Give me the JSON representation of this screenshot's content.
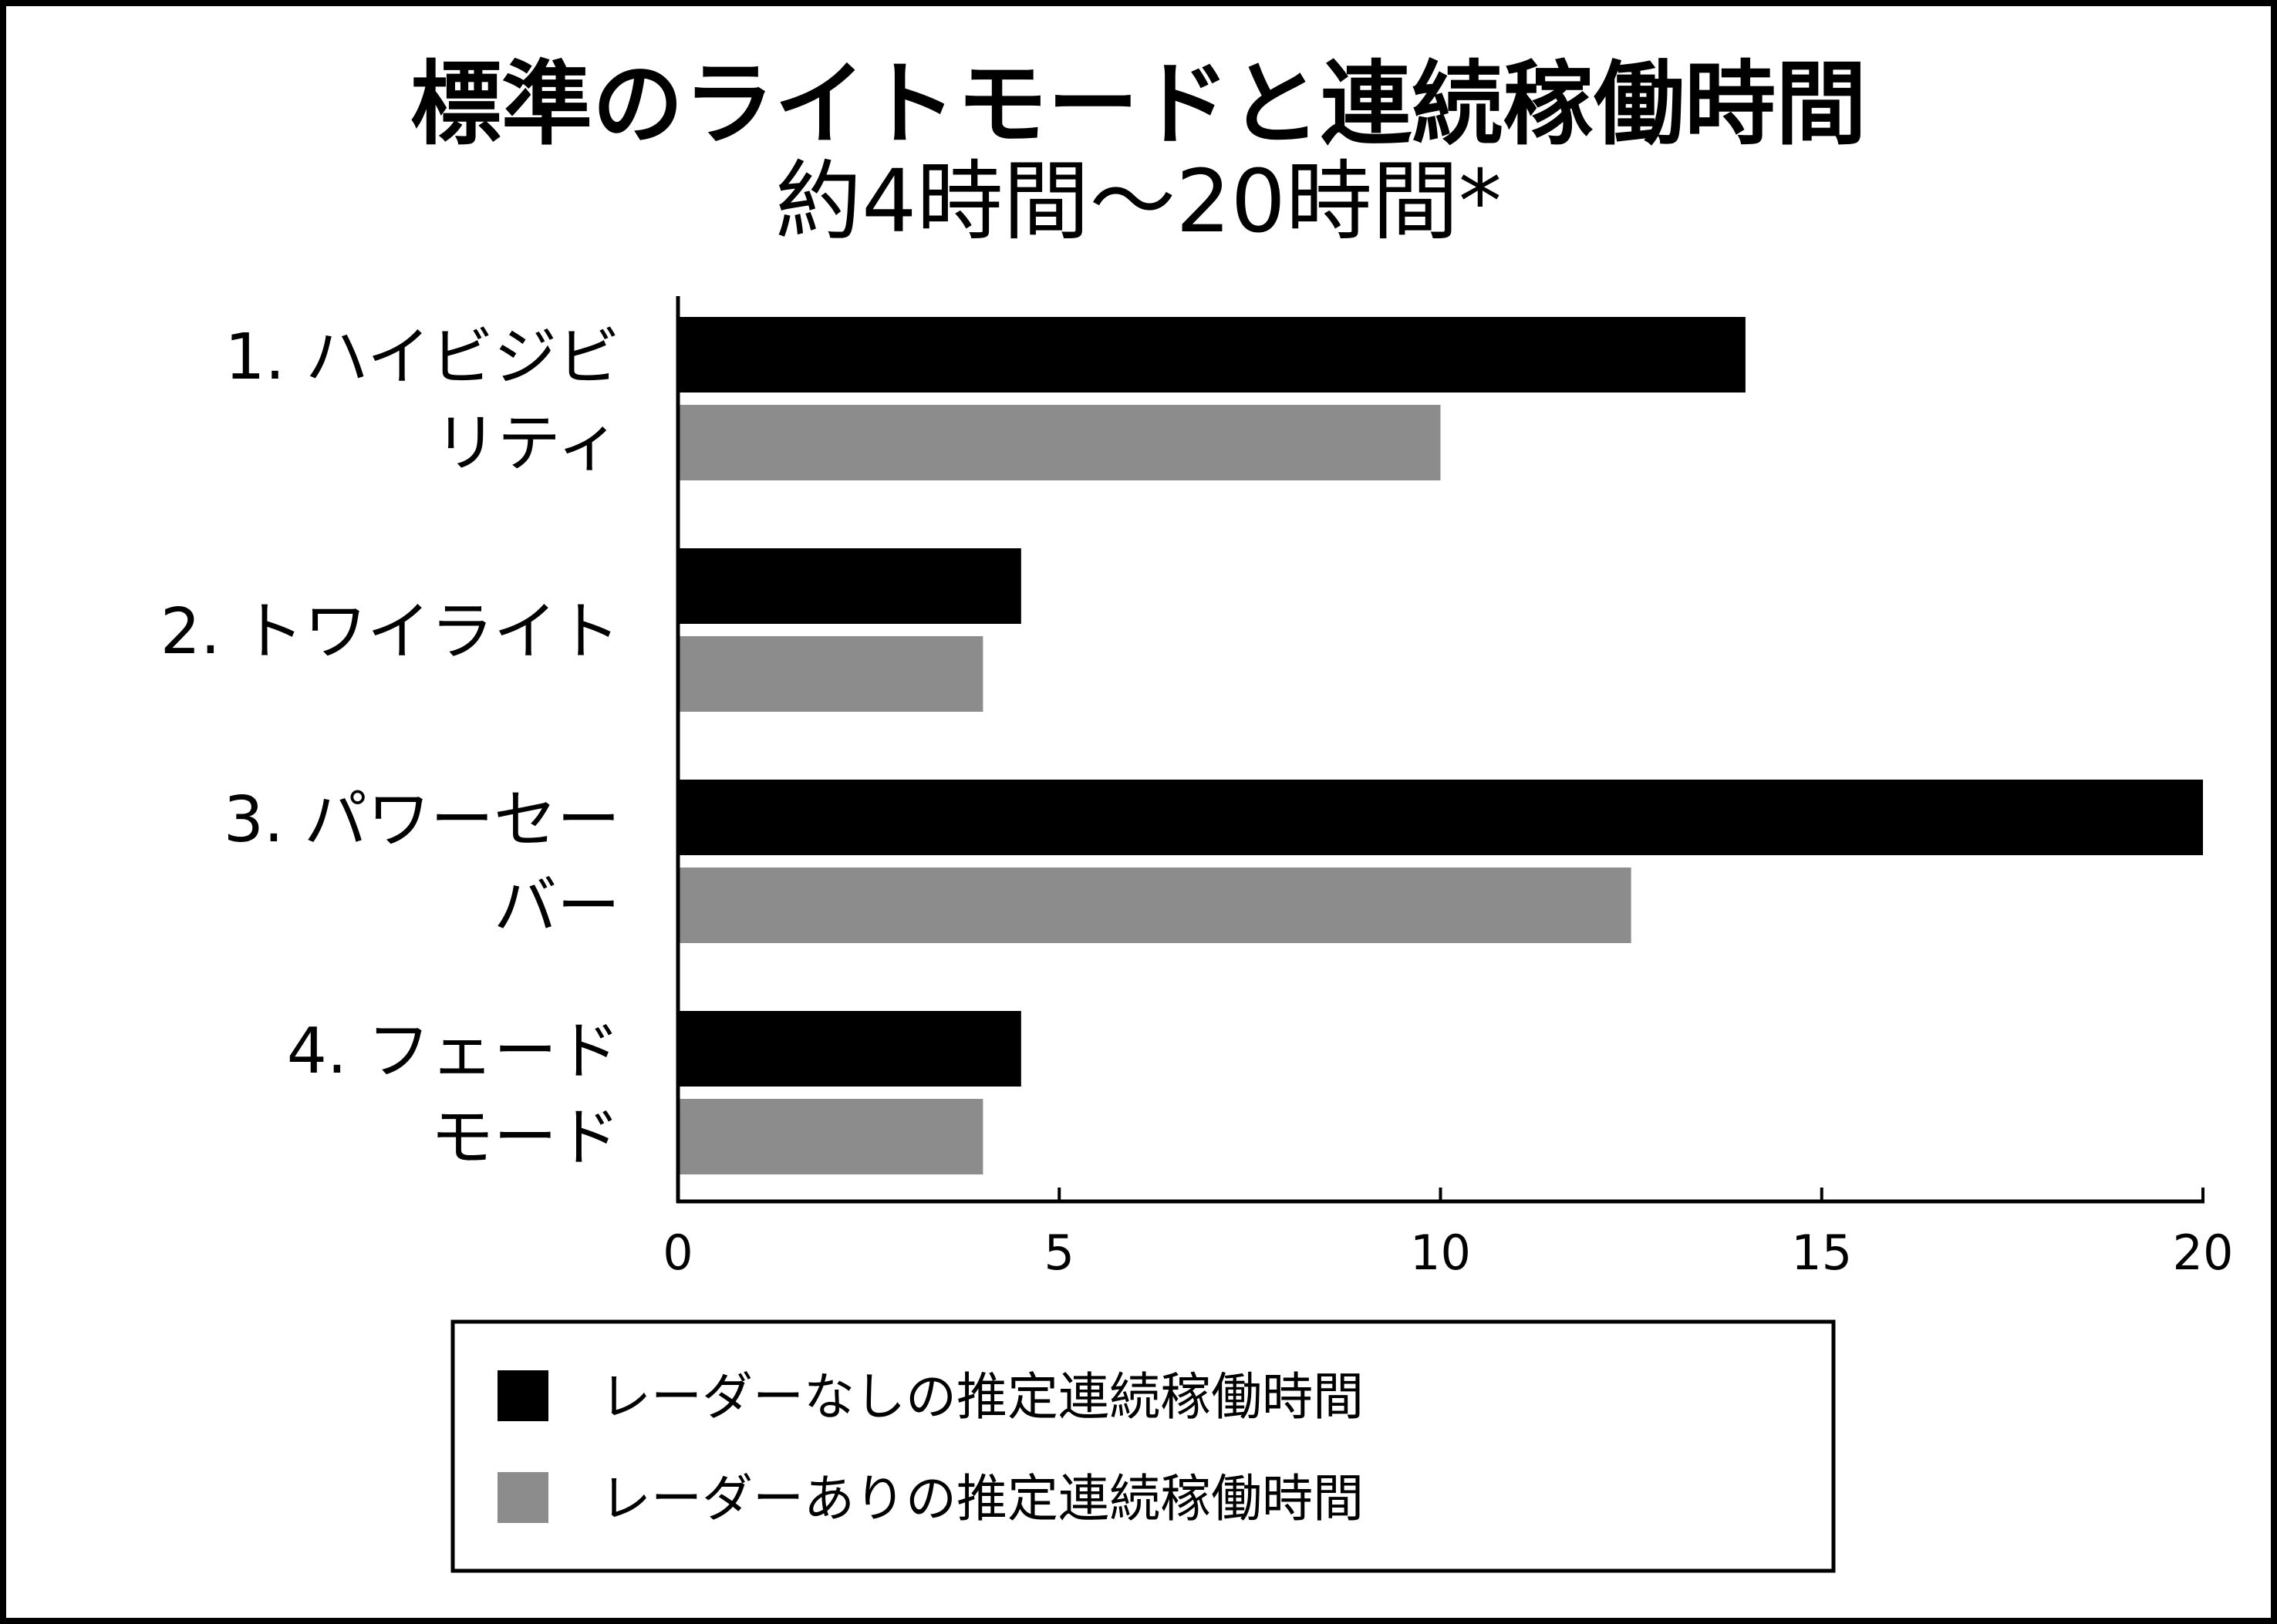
{
  "chart_data": {
    "type": "bar",
    "orientation": "horizontal",
    "title": "標準のライトモードと連続稼働時間",
    "subtitle": "約4時間〜20時間*",
    "categories": [
      [
        "1. ハイビジビ",
        "リティ"
      ],
      [
        "2. トワイライト"
      ],
      [
        "3. パワーセー",
        "バー"
      ],
      [
        "4. フェード",
        "モード"
      ]
    ],
    "series": [
      {
        "name": "レーダーなしの推定連続稼働時間",
        "color": "#000000",
        "values": [
          14,
          4.5,
          20,
          4.5
        ]
      },
      {
        "name": "レーダーありの推定連続稼働時間",
        "color": "#8c8c8c",
        "values": [
          10,
          4,
          12.5,
          4
        ]
      }
    ],
    "xlim": [
      0,
      20
    ],
    "xticks": [
      "0",
      "5",
      "10",
      "15",
      "20"
    ],
    "xlabel": "",
    "ylabel": "",
    "grid": false,
    "legend_position": "bottom"
  }
}
